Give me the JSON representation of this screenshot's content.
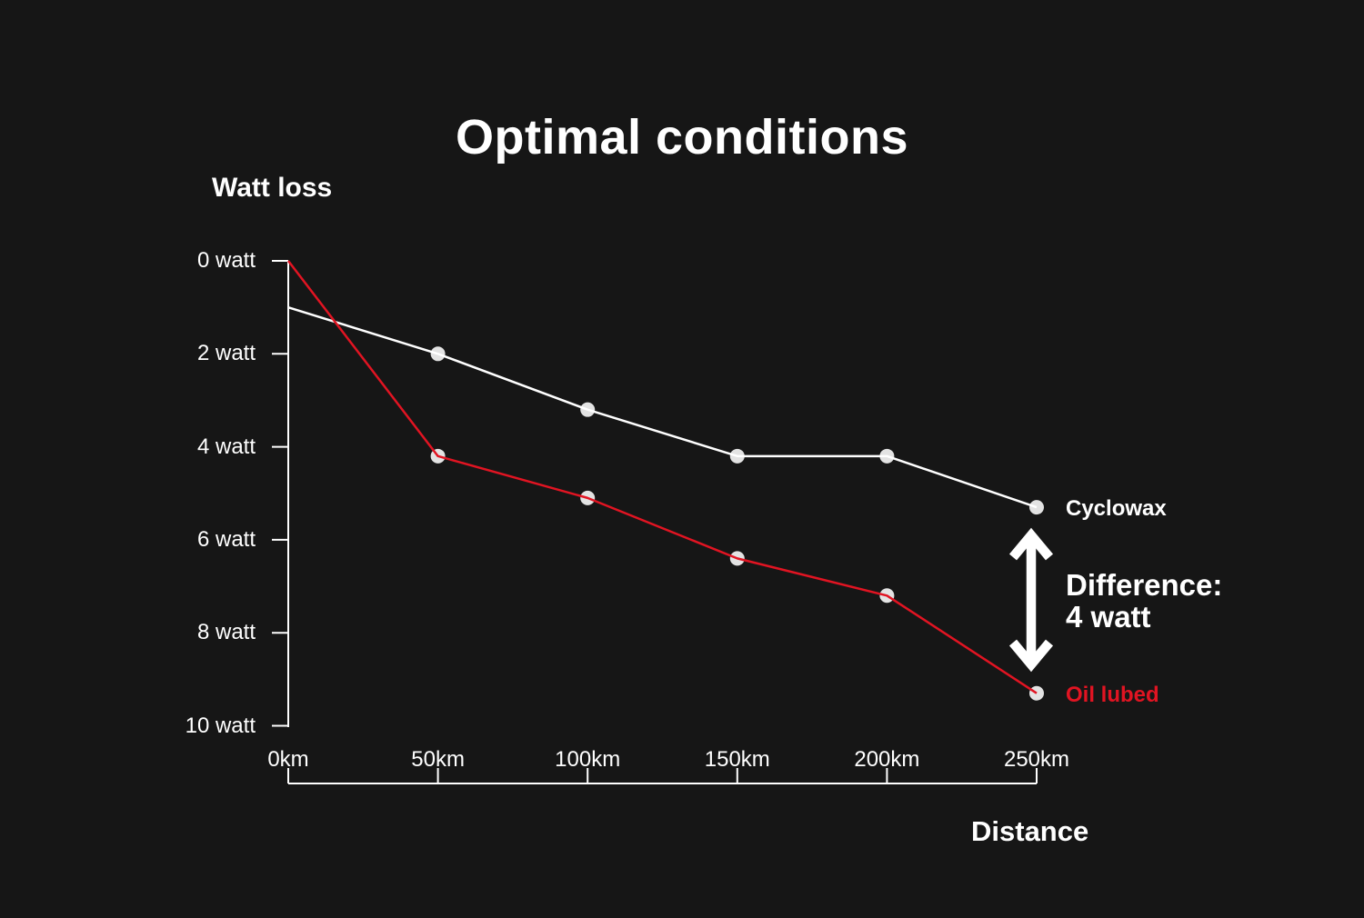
{
  "title": "Optimal conditions",
  "colors": {
    "background": "#161616",
    "text": "#ffffff",
    "accent_red": "#e11422",
    "marker_fill": "#e3e3e3",
    "axis": "#ffffff"
  },
  "axes": {
    "y_title": "Watt loss",
    "x_title": "Distance",
    "y_tick_labels": [
      "0 watt",
      "2 watt",
      "4 watt",
      "6 watt",
      "8 watt",
      "10 watt"
    ],
    "x_tick_labels": [
      "0km",
      "50km",
      "100km",
      "150km",
      "200km",
      "250km"
    ]
  },
  "series_labels": {
    "cyclowax": "Cyclowax",
    "oil_lubed": "Oil lubed"
  },
  "annotation": {
    "line1": "Difference:",
    "line2": "4 watt"
  },
  "chart_data": {
    "type": "line",
    "title": "Optimal conditions",
    "xlabel": "Distance",
    "ylabel": "Watt loss",
    "categories": [
      "0km",
      "50km",
      "100km",
      "150km",
      "200km",
      "250km"
    ],
    "x_values_km": [
      0,
      50,
      100,
      150,
      200,
      250
    ],
    "y_axis": {
      "unit": "watt",
      "ticks": [
        0,
        2,
        4,
        6,
        8,
        10
      ],
      "range": [
        0,
        10
      ],
      "inverted": true
    },
    "grid": false,
    "legend_position": "right-of-line-ends",
    "series": [
      {
        "name": "Cyclowax",
        "color": "#ffffff",
        "values_watt": [
          1.0,
          2.0,
          3.2,
          4.2,
          4.2,
          5.3
        ],
        "markers_at": [
          1,
          2,
          3,
          4,
          5
        ]
      },
      {
        "name": "Oil lubed",
        "color": "#e11422",
        "values_watt": [
          0.0,
          4.2,
          5.1,
          6.4,
          7.2,
          9.3
        ],
        "markers_at": [
          1,
          2,
          3,
          4,
          5
        ]
      }
    ],
    "annotation": {
      "text": "Difference: 4 watt",
      "at_km": 250,
      "difference_watt": 4
    }
  }
}
